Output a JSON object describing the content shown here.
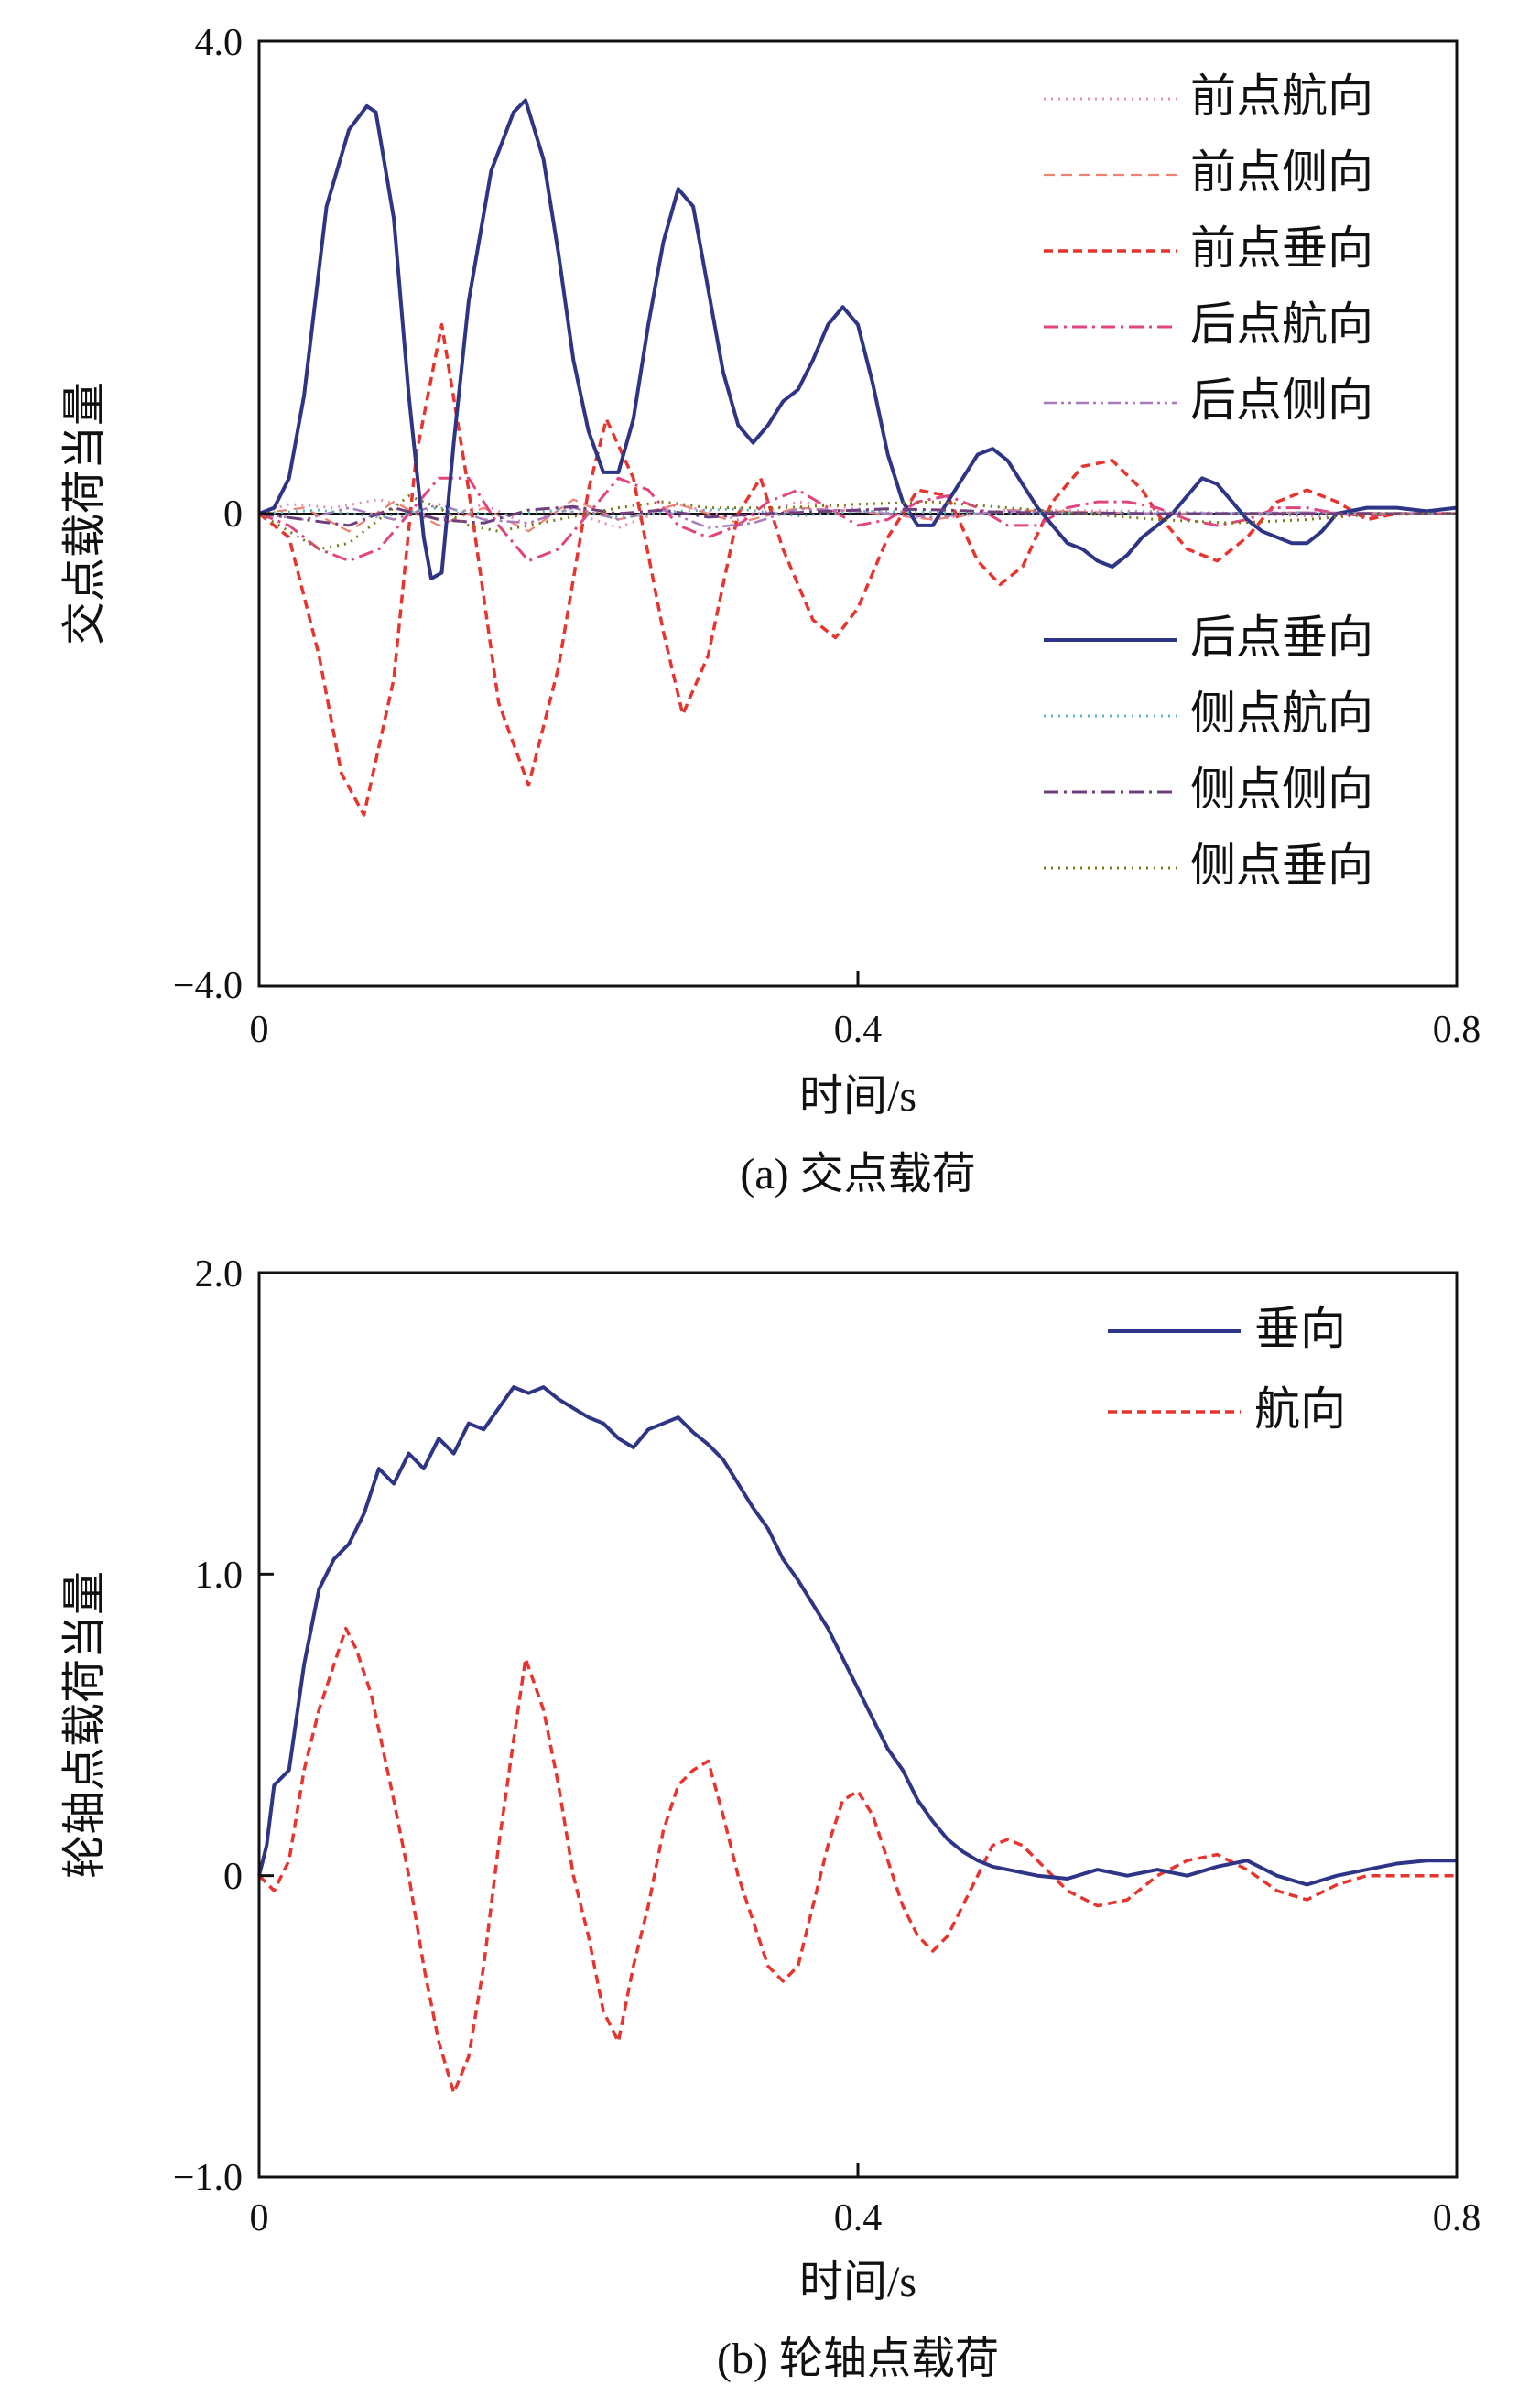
{
  "chart_data": [
    {
      "type": "line",
      "caption": "(a) 交点载荷",
      "xlabel": "时间/s",
      "ylabel": "交点载荷当量",
      "xlim": [
        0,
        0.8
      ],
      "ylim": [
        -4.0,
        4.0
      ],
      "xticks": [
        "0",
        "0.4",
        "0.8"
      ],
      "yticks": [
        "4.0",
        "0",
        "−4.0"
      ],
      "legend_position": "top-right",
      "series": [
        {
          "name": "前点航向",
          "color": "#e48fb6",
          "style": "dotted",
          "x": [
            0,
            0.02,
            0.05,
            0.08,
            0.1,
            0.12,
            0.15,
            0.18,
            0.2,
            0.24,
            0.28,
            0.32,
            0.36,
            0.4,
            0.45,
            0.5,
            0.6,
            0.7,
            0.8
          ],
          "y": [
            0,
            0.08,
            0.05,
            0.12,
            0.05,
            -0.05,
            0.08,
            -0.1,
            0.05,
            -0.12,
            0.08,
            -0.05,
            0.1,
            0.04,
            -0.05,
            0.03,
            0.02,
            -0.02,
            0
          ]
        },
        {
          "name": "前点侧向",
          "color": "#ee8272",
          "style": "dashed-thin",
          "x": [
            0,
            0.03,
            0.06,
            0.09,
            0.12,
            0.15,
            0.18,
            0.21,
            0.24,
            0.28,
            0.32,
            0.36,
            0.4,
            0.45,
            0.5,
            0.6,
            0.7,
            0.8
          ],
          "y": [
            0,
            0.05,
            -0.15,
            0.1,
            -0.1,
            0.05,
            -0.15,
            0.12,
            -0.05,
            0.08,
            -0.08,
            0.05,
            0.02,
            -0.05,
            0.03,
            0,
            0.01,
            0
          ]
        },
        {
          "name": "前点垂向",
          "color": "#e8342f",
          "style": "dashed",
          "x": [
            0,
            0.02,
            0.04,
            0.055,
            0.07,
            0.09,
            0.105,
            0.122,
            0.14,
            0.16,
            0.18,
            0.2,
            0.22,
            0.232,
            0.25,
            0.27,
            0.283,
            0.3,
            0.32,
            0.335,
            0.35,
            0.37,
            0.385,
            0.4,
            0.42,
            0.44,
            0.46,
            0.48,
            0.495,
            0.51,
            0.53,
            0.55,
            0.57,
            0.59,
            0.6,
            0.62,
            0.64,
            0.66,
            0.68,
            0.7,
            0.72,
            0.74,
            0.76,
            0.78,
            0.8
          ],
          "y": [
            0,
            -0.2,
            -1.2,
            -2.2,
            -2.55,
            -1.4,
            0.5,
            1.6,
            0.2,
            -1.6,
            -2.3,
            -1.3,
            0.2,
            0.8,
            0.3,
            -1.0,
            -1.7,
            -1.2,
            0.0,
            0.3,
            -0.3,
            -0.9,
            -1.05,
            -0.8,
            -0.2,
            0.2,
            0.15,
            -0.4,
            -0.6,
            -0.45,
            0.1,
            0.4,
            0.45,
            0.2,
            0.0,
            -0.3,
            -0.4,
            -0.2,
            0.1,
            0.2,
            0.1,
            -0.05,
            0.0,
            0.0,
            0.0
          ]
        },
        {
          "name": "后点航向",
          "color": "#e0457f",
          "style": "dashdot",
          "x": [
            0,
            0.02,
            0.04,
            0.06,
            0.08,
            0.1,
            0.12,
            0.14,
            0.16,
            0.18,
            0.2,
            0.22,
            0.24,
            0.26,
            0.28,
            0.3,
            0.32,
            0.34,
            0.36,
            0.38,
            0.4,
            0.42,
            0.44,
            0.46,
            0.48,
            0.5,
            0.52,
            0.54,
            0.56,
            0.58,
            0.6,
            0.62,
            0.64,
            0.66,
            0.68,
            0.7,
            0.72,
            0.74,
            0.76,
            0.78,
            0.8
          ],
          "y": [
            0,
            -0.1,
            -0.3,
            -0.4,
            -0.3,
            0.0,
            0.3,
            0.3,
            -0.1,
            -0.4,
            -0.3,
            0.0,
            0.3,
            0.2,
            -0.1,
            -0.2,
            -0.1,
            0.1,
            0.2,
            0.05,
            -0.1,
            -0.05,
            0.1,
            0.15,
            0.05,
            -0.1,
            -0.1,
            0.05,
            0.1,
            0.1,
            0.05,
            -0.05,
            -0.1,
            -0.05,
            0.05,
            0.05,
            0.0,
            -0.02,
            0.0,
            0.0,
            0.0
          ]
        },
        {
          "name": "后点侧向",
          "color": "#a97abd",
          "style": "dashdotdot",
          "x": [
            0,
            0.03,
            0.06,
            0.09,
            0.12,
            0.15,
            0.18,
            0.21,
            0.24,
            0.27,
            0.3,
            0.33,
            0.36,
            0.4,
            0.45,
            0.5,
            0.6,
            0.7,
            0.8
          ],
          "y": [
            0,
            -0.05,
            0.05,
            -0.05,
            0.08,
            -0.05,
            -0.08,
            0.05,
            -0.05,
            0.03,
            -0.12,
            -0.08,
            0.04,
            0.02,
            -0.03,
            0.02,
            0.0,
            0.01,
            0
          ]
        },
        {
          "name": "后点垂向",
          "color": "#2e3586",
          "style": "solid",
          "x": [
            0,
            0.01,
            0.02,
            0.03,
            0.045,
            0.06,
            0.072,
            0.078,
            0.09,
            0.1,
            0.11,
            0.115,
            0.122,
            0.13,
            0.14,
            0.155,
            0.17,
            0.178,
            0.19,
            0.2,
            0.21,
            0.22,
            0.23,
            0.24,
            0.25,
            0.26,
            0.27,
            0.28,
            0.29,
            0.3,
            0.31,
            0.32,
            0.33,
            0.34,
            0.35,
            0.36,
            0.37,
            0.38,
            0.39,
            0.4,
            0.41,
            0.42,
            0.43,
            0.44,
            0.45,
            0.46,
            0.47,
            0.48,
            0.49,
            0.5,
            0.51,
            0.52,
            0.53,
            0.54,
            0.55,
            0.56,
            0.57,
            0.58,
            0.59,
            0.6,
            0.61,
            0.62,
            0.63,
            0.64,
            0.65,
            0.66,
            0.67,
            0.68,
            0.69,
            0.7,
            0.71,
            0.72,
            0.74,
            0.76,
            0.78,
            0.8
          ],
          "y": [
            0,
            0.05,
            0.3,
            1.0,
            2.6,
            3.25,
            3.45,
            3.4,
            2.5,
            1.0,
            -0.2,
            -0.55,
            -0.5,
            0.6,
            1.8,
            2.9,
            3.4,
            3.5,
            3.0,
            2.2,
            1.3,
            0.7,
            0.35,
            0.35,
            0.8,
            1.6,
            2.3,
            2.75,
            2.6,
            1.9,
            1.2,
            0.75,
            0.6,
            0.75,
            0.95,
            1.05,
            1.3,
            1.6,
            1.75,
            1.6,
            1.1,
            0.5,
            0.1,
            -0.1,
            -0.1,
            0.1,
            0.3,
            0.5,
            0.55,
            0.45,
            0.25,
            0.05,
            -0.1,
            -0.25,
            -0.3,
            -0.4,
            -0.45,
            -0.35,
            -0.2,
            -0.1,
            0.0,
            0.15,
            0.3,
            0.25,
            0.1,
            -0.05,
            -0.15,
            -0.2,
            -0.25,
            -0.25,
            -0.15,
            0.0,
            0.05,
            0.05,
            0.02,
            0.05
          ]
        },
        {
          "name": "侧点航向",
          "color": "#5fb4bf",
          "style": "dotted",
          "x": [
            0,
            0.04,
            0.08,
            0.12,
            0.16,
            0.2,
            0.24,
            0.28,
            0.32,
            0.36,
            0.4,
            0.5,
            0.6,
            0.7,
            0.8
          ],
          "y": [
            0,
            0.03,
            -0.03,
            0.05,
            -0.02,
            0.03,
            -0.03,
            0.02,
            0.04,
            -0.02,
            0.02,
            0.0,
            0.01,
            0.0,
            0
          ]
        },
        {
          "name": "侧点侧向",
          "color": "#6e3f7c",
          "style": "dashdot",
          "x": [
            0,
            0.03,
            0.06,
            0.09,
            0.12,
            0.15,
            0.18,
            0.21,
            0.24,
            0.27,
            0.3,
            0.34,
            0.38,
            0.42,
            0.46,
            0.5,
            0.6,
            0.7,
            0.8
          ],
          "y": [
            0,
            -0.05,
            -0.1,
            0.05,
            -0.05,
            -0.08,
            0.03,
            0.06,
            0.0,
            0.03,
            -0.03,
            0.0,
            0.02,
            0.04,
            0.03,
            0.01,
            0.0,
            0.0,
            0
          ]
        },
        {
          "name": "侧点垂向",
          "color": "#7b7a14",
          "style": "dotted",
          "x": [
            0,
            0.02,
            0.04,
            0.06,
            0.08,
            0.1,
            0.12,
            0.14,
            0.16,
            0.18,
            0.2,
            0.22,
            0.24,
            0.27,
            0.3,
            0.35,
            0.4,
            0.45,
            0.5,
            0.55,
            0.6,
            0.65,
            0.7,
            0.75,
            0.8
          ],
          "y": [
            0,
            -0.15,
            -0.3,
            -0.25,
            -0.05,
            0.15,
            0.05,
            -0.1,
            -0.15,
            -0.1,
            -0.05,
            0.0,
            0.05,
            0.1,
            0.05,
            0.05,
            0.08,
            0.1,
            0.05,
            0.0,
            -0.05,
            -0.08,
            -0.05,
            0.0,
            0
          ]
        }
      ]
    },
    {
      "type": "line",
      "caption": "(b) 轮轴点载荷",
      "xlabel": "时间/s",
      "ylabel": "轮轴点载荷当量",
      "xlim": [
        0,
        0.8
      ],
      "ylim": [
        -1.0,
        2.0
      ],
      "xticks": [
        "0",
        "0.4",
        "0.8"
      ],
      "yticks": [
        "2.0",
        "1.0",
        "0",
        "−1.0"
      ],
      "legend_position": "top-right",
      "series": [
        {
          "name": "垂向",
          "color": "#2e3586",
          "style": "solid",
          "x": [
            0,
            0.005,
            0.01,
            0.02,
            0.03,
            0.04,
            0.05,
            0.06,
            0.07,
            0.08,
            0.09,
            0.1,
            0.11,
            0.12,
            0.13,
            0.14,
            0.15,
            0.16,
            0.17,
            0.18,
            0.19,
            0.2,
            0.21,
            0.22,
            0.23,
            0.24,
            0.25,
            0.26,
            0.27,
            0.28,
            0.29,
            0.3,
            0.31,
            0.32,
            0.33,
            0.34,
            0.35,
            0.36,
            0.37,
            0.38,
            0.39,
            0.4,
            0.41,
            0.42,
            0.43,
            0.44,
            0.45,
            0.46,
            0.47,
            0.48,
            0.49,
            0.5,
            0.52,
            0.54,
            0.56,
            0.58,
            0.6,
            0.62,
            0.64,
            0.66,
            0.68,
            0.7,
            0.72,
            0.74,
            0.76,
            0.78,
            0.8
          ],
          "y": [
            0,
            0.1,
            0.3,
            0.35,
            0.7,
            0.95,
            1.05,
            1.1,
            1.2,
            1.35,
            1.3,
            1.4,
            1.35,
            1.45,
            1.4,
            1.5,
            1.48,
            1.55,
            1.62,
            1.6,
            1.62,
            1.58,
            1.55,
            1.52,
            1.5,
            1.45,
            1.42,
            1.48,
            1.5,
            1.52,
            1.47,
            1.43,
            1.38,
            1.3,
            1.22,
            1.15,
            1.05,
            0.98,
            0.9,
            0.82,
            0.72,
            0.62,
            0.52,
            0.42,
            0.35,
            0.25,
            0.18,
            0.12,
            0.08,
            0.05,
            0.03,
            0.02,
            0.0,
            -0.01,
            0.02,
            0.0,
            0.02,
            0.0,
            0.03,
            0.05,
            0.0,
            -0.03,
            0.0,
            0.02,
            0.04,
            0.05,
            0.05
          ]
        },
        {
          "name": "航向",
          "color": "#e8342f",
          "style": "dashed",
          "x": [
            0,
            0.01,
            0.02,
            0.03,
            0.04,
            0.05,
            0.058,
            0.065,
            0.075,
            0.09,
            0.1,
            0.11,
            0.12,
            0.13,
            0.14,
            0.15,
            0.16,
            0.17,
            0.178,
            0.19,
            0.2,
            0.21,
            0.22,
            0.23,
            0.24,
            0.25,
            0.26,
            0.27,
            0.28,
            0.29,
            0.3,
            0.31,
            0.32,
            0.33,
            0.34,
            0.35,
            0.36,
            0.37,
            0.38,
            0.39,
            0.4,
            0.41,
            0.42,
            0.43,
            0.44,
            0.45,
            0.46,
            0.47,
            0.48,
            0.49,
            0.5,
            0.51,
            0.52,
            0.54,
            0.56,
            0.58,
            0.6,
            0.62,
            0.64,
            0.66,
            0.68,
            0.7,
            0.72,
            0.74,
            0.76,
            0.78,
            0.8
          ],
          "y": [
            0,
            -0.05,
            0.05,
            0.35,
            0.55,
            0.7,
            0.82,
            0.75,
            0.6,
            0.25,
            0.0,
            -0.3,
            -0.55,
            -0.72,
            -0.6,
            -0.3,
            0.1,
            0.45,
            0.72,
            0.55,
            0.3,
            0.0,
            -0.2,
            -0.45,
            -0.55,
            -0.3,
            -0.1,
            0.15,
            0.3,
            0.35,
            0.38,
            0.2,
            0.0,
            -0.15,
            -0.3,
            -0.35,
            -0.3,
            -0.1,
            0.1,
            0.25,
            0.28,
            0.2,
            0.05,
            -0.1,
            -0.2,
            -0.25,
            -0.2,
            -0.1,
            0.0,
            0.1,
            0.12,
            0.1,
            0.05,
            -0.05,
            -0.1,
            -0.08,
            0.0,
            0.05,
            0.07,
            0.02,
            -0.05,
            -0.08,
            -0.03,
            0.0,
            0.0,
            0.0,
            0.0
          ]
        }
      ]
    }
  ]
}
